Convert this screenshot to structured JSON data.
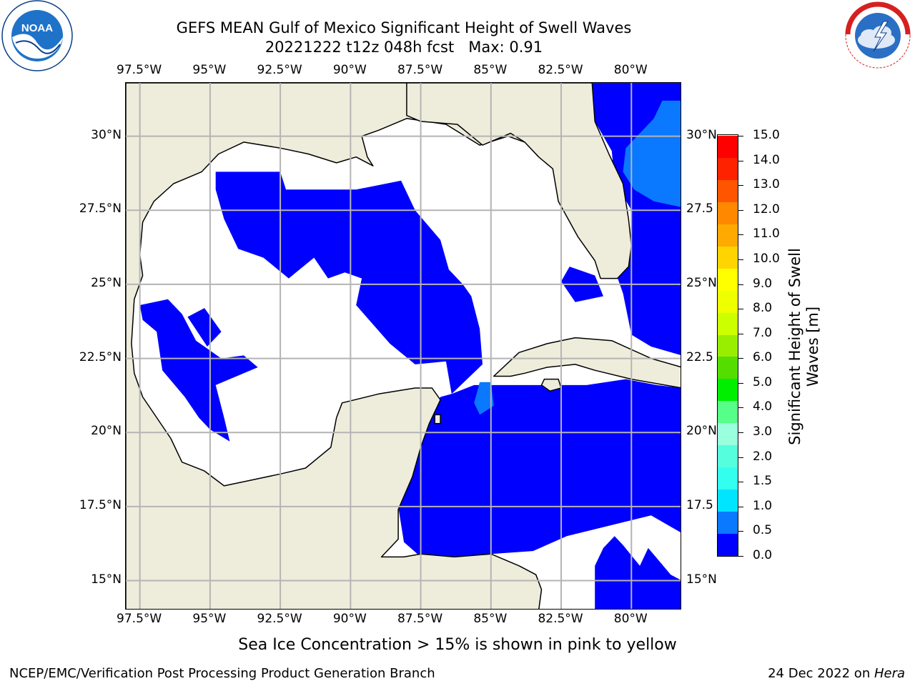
{
  "title": {
    "line1": "GEFS MEAN Gulf of Mexico Significant Height of Swell Waves",
    "line2": "20221222 t12z 048h fcst   Max: 0.91"
  },
  "logos": {
    "noaa_text": "NOAA",
    "noaa_ring_text": "NATIONAL OCEANIC AND ATMOSPHERIC ADMINISTRATION · U.S. DEPARTMENT OF COMMERCE",
    "nws_ring_text": "NATIONAL WEATHER SERVICE"
  },
  "map": {
    "lon_labels": [
      "97.5°W",
      "95°W",
      "92.5°W",
      "90°W",
      "87.5°W",
      "85°W",
      "82.5°W",
      "80°W"
    ],
    "lat_labels_left": [
      "30°N",
      "27.5°N",
      "25°N",
      "22.5°N",
      "20°N",
      "17.5°N",
      "15°N"
    ],
    "lat_labels_right": [
      "30°N",
      "27.5",
      "25°N",
      "22.5",
      "20°N",
      "17.5",
      "15°N"
    ],
    "lon_range": [
      -98,
      -78.2
    ],
    "lat_range": [
      14,
      31.8
    ],
    "colors": {
      "land": "#eeeddc",
      "no_data": "#ffffff",
      "swell_0_0.5": "#0000ff",
      "swell_0.5_1.0": "#0a78ff",
      "grid": "#b4b4b4",
      "coast": "#000000"
    },
    "caption": "Sea Ice Concentration > 15% is shown in pink to yellow"
  },
  "colorbar": {
    "label": "Significant Height of Swell Waves [m]",
    "label_line1": "Significant Height of Swell",
    "label_line2": "Waves [m]",
    "ticks": [
      "15.0",
      "14.0",
      "13.0",
      "12.0",
      "11.0",
      "10.0",
      "9.0",
      "8.0",
      "7.0",
      "6.0",
      "5.0",
      "4.0",
      "3.0",
      "2.0",
      "1.5",
      "1.0",
      "0.5",
      "0.0"
    ],
    "colors_bottom_to_top": [
      "#0000ff",
      "#0a78ff",
      "#00e5ff",
      "#33ffee",
      "#55ffdd",
      "#99ffdd",
      "#55ff88",
      "#00ee00",
      "#55dd00",
      "#99ee00",
      "#ccff00",
      "#eeff00",
      "#ffff00",
      "#ffd400",
      "#ffaa00",
      "#ff8800",
      "#ff5500",
      "#ff2200",
      "#ff0000"
    ]
  },
  "footer": {
    "left": "NCEP/EMC/Verification Post Processing Product Generation Branch",
    "right_date": "24 Dec 2022 on ",
    "right_host": "Hera"
  }
}
